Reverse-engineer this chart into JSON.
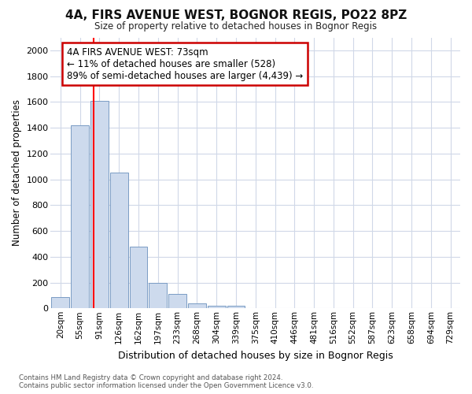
{
  "title": "4A, FIRS AVENUE WEST, BOGNOR REGIS, PO22 8PZ",
  "subtitle": "Size of property relative to detached houses in Bognor Regis",
  "xlabel": "Distribution of detached houses by size in Bognor Regis",
  "ylabel": "Number of detached properties",
  "bin_labels": [
    "20sqm",
    "55sqm",
    "91sqm",
    "126sqm",
    "162sqm",
    "197sqm",
    "233sqm",
    "268sqm",
    "304sqm",
    "339sqm",
    "375sqm",
    "410sqm",
    "446sqm",
    "481sqm",
    "516sqm",
    "552sqm",
    "587sqm",
    "623sqm",
    "658sqm",
    "694sqm",
    "729sqm"
  ],
  "bar_values": [
    85,
    1420,
    1610,
    1050,
    480,
    200,
    110,
    40,
    20,
    20,
    0,
    0,
    0,
    0,
    0,
    0,
    0,
    0,
    0,
    0,
    0
  ],
  "bar_color": "#cddaed",
  "bar_edge_color": "#7a9cc4",
  "background_color": "#ffffff",
  "grid_color": "#d0d8e8",
  "red_line_x": 1.72,
  "annotation_text": "4A FIRS AVENUE WEST: 73sqm\n← 11% of detached houses are smaller (528)\n89% of semi-detached houses are larger (4,439) →",
  "annotation_box_color": "#ffffff",
  "annotation_box_edge": "#cc0000",
  "ylim": [
    0,
    2100
  ],
  "yticks": [
    0,
    200,
    400,
    600,
    800,
    1000,
    1200,
    1400,
    1600,
    1800,
    2000
  ],
  "footer_line1": "Contains HM Land Registry data © Crown copyright and database right 2024.",
  "footer_line2": "Contains public sector information licensed under the Open Government Licence v3.0."
}
